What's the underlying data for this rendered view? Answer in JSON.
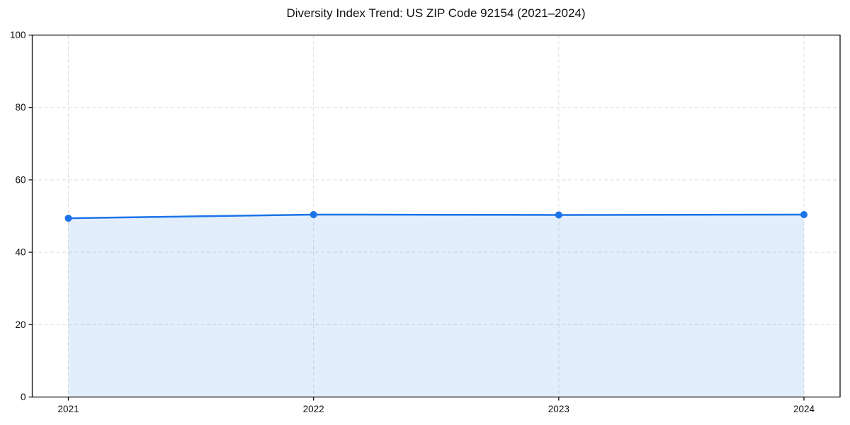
{
  "chart_data": {
    "type": "line",
    "title": "Diversity Index Trend: US ZIP Code 92154 (2021–2024)",
    "categories": [
      "2021",
      "2022",
      "2023",
      "2024"
    ],
    "series": [
      {
        "name": "Diversity Index",
        "values": [
          49.4,
          50.4,
          50.3,
          50.4
        ]
      }
    ],
    "xlabel": "",
    "ylabel": "",
    "ylim": [
      0,
      100
    ],
    "yticks": [
      0,
      20,
      40,
      60,
      80,
      100
    ],
    "grid": true,
    "grid_style": "dashed",
    "legend_position": "none",
    "marker": "circle",
    "area_fill": true,
    "colors": {
      "line": "#1a73e8",
      "marker": "#1a73e8",
      "area_fill": "#1a73e8",
      "area_fill_opacity": 0.12,
      "grid": "#dedede",
      "axis": "#111111",
      "text": "#111111",
      "background": "#ffffff"
    }
  }
}
